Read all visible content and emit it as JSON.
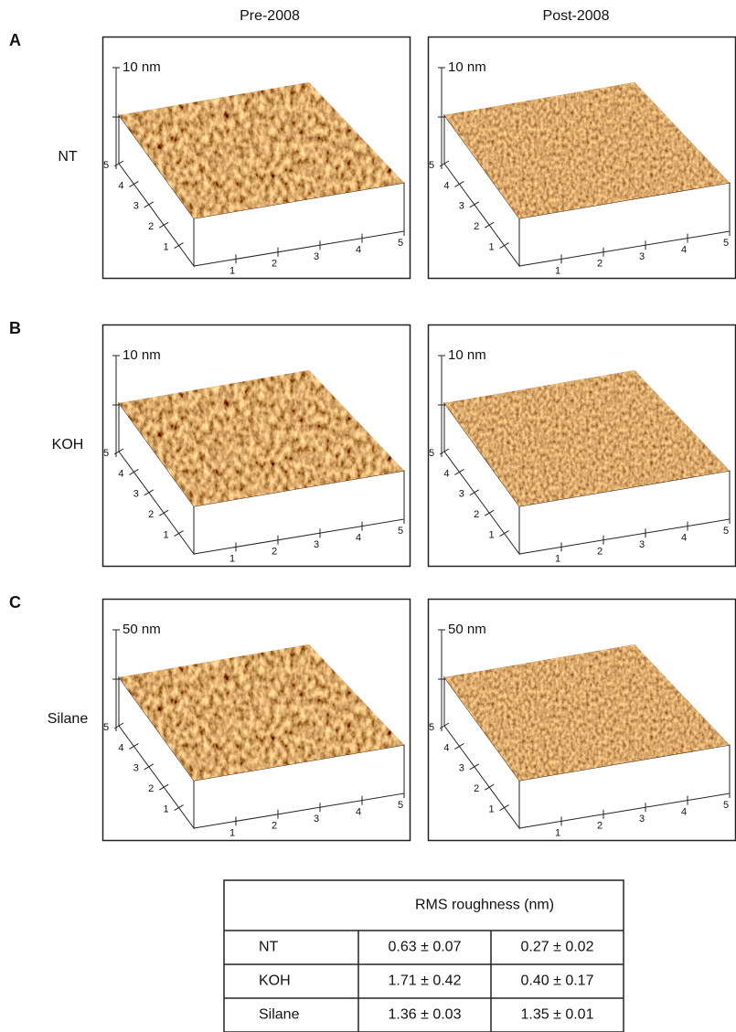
{
  "column_headers": [
    "Pre-2008",
    "Post-2008"
  ],
  "rows": [
    {
      "letter": "A",
      "label": "NT",
      "scale": "10 nm"
    },
    {
      "letter": "B",
      "label": "KOH",
      "scale": "10 nm"
    },
    {
      "letter": "C",
      "label": "Silane",
      "scale": "50 nm"
    }
  ],
  "axis_ticks": [
    "1",
    "2",
    "3",
    "4",
    "5"
  ],
  "table": {
    "header": "RMS roughness (nm)",
    "rows": [
      [
        "NT",
        "0.63 ± 0.07",
        "0.27 ± 0.02"
      ],
      [
        "KOH",
        "1.71 ± 0.42",
        "0.40 ± 0.17"
      ],
      [
        "Silane",
        "1.36 ± 0.03",
        "1.35 ± 0.01"
      ]
    ]
  }
}
